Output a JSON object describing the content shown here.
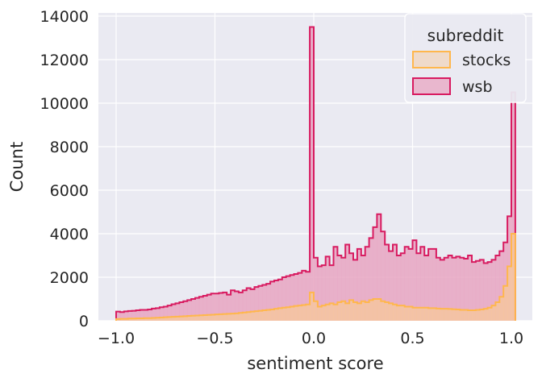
{
  "chart_data": {
    "type": "histogram",
    "title": "",
    "xlabel": "sentiment score",
    "ylabel": "Count",
    "xlim": [
      -1.0,
      1.0
    ],
    "ylim": [
      0,
      14000
    ],
    "xticks": [
      "−1.0",
      "−0.5",
      "0.0",
      "0.5",
      "1.0"
    ],
    "xtick_values": [
      -1.0,
      -0.5,
      0.0,
      0.5,
      1.0
    ],
    "yticks": [
      "0",
      "2000",
      "4000",
      "6000",
      "8000",
      "10000",
      "12000",
      "14000"
    ],
    "ytick_values": [
      0,
      2000,
      4000,
      6000,
      8000,
      10000,
      12000,
      14000
    ],
    "grid": true,
    "legend": {
      "title": "subreddit",
      "placement": "top-right",
      "entries": [
        "stocks",
        "wsb"
      ]
    },
    "bin_edges_start": -1.0,
    "bin_width": 0.02,
    "series": [
      {
        "name": "wsb",
        "edge_color": "#d81b60",
        "fill_color": "#e8a6c2",
        "values": [
          420,
          400,
          430,
          450,
          460,
          480,
          500,
          500,
          520,
          560,
          580,
          620,
          650,
          700,
          760,
          800,
          850,
          900,
          950,
          1000,
          1050,
          1100,
          1150,
          1200,
          1250,
          1250,
          1280,
          1300,
          1200,
          1400,
          1350,
          1300,
          1400,
          1500,
          1450,
          1550,
          1600,
          1650,
          1700,
          1800,
          1850,
          1900,
          2000,
          2050,
          2100,
          2150,
          2200,
          2300,
          2250,
          13500,
          2900,
          2500,
          2550,
          2950,
          2550,
          3400,
          3000,
          2900,
          3500,
          3100,
          2800,
          3300,
          3000,
          3400,
          3800,
          4300,
          4900,
          4100,
          3500,
          3200,
          3500,
          3000,
          3100,
          3400,
          3300,
          3700,
          3100,
          3400,
          3000,
          3300,
          3300,
          2900,
          2800,
          2900,
          3000,
          2900,
          2950,
          2900,
          2850,
          3000,
          2700,
          2750,
          2800,
          2650,
          2700,
          2800,
          3000,
          3200,
          3600,
          4800,
          10500
        ]
      },
      {
        "name": "stocks",
        "edge_color": "#ffb74d",
        "fill_color": "#f7c89a",
        "values": [
          80,
          90,
          90,
          100,
          100,
          110,
          110,
          120,
          120,
          130,
          140,
          150,
          160,
          170,
          180,
          190,
          200,
          210,
          220,
          230,
          240,
          250,
          260,
          270,
          280,
          290,
          300,
          310,
          320,
          330,
          340,
          360,
          380,
          400,
          420,
          440,
          460,
          480,
          500,
          520,
          550,
          580,
          600,
          620,
          650,
          680,
          700,
          720,
          750,
          1300,
          900,
          650,
          700,
          750,
          800,
          750,
          850,
          900,
          800,
          950,
          850,
          800,
          900,
          850,
          950,
          1000,
          1000,
          900,
          850,
          800,
          750,
          700,
          700,
          650,
          650,
          600,
          600,
          600,
          600,
          580,
          580,
          560,
          550,
          550,
          540,
          530,
          520,
          500,
          500,
          480,
          480,
          500,
          520,
          550,
          600,
          700,
          850,
          1100,
          1600,
          2500,
          4000
        ]
      }
    ]
  }
}
